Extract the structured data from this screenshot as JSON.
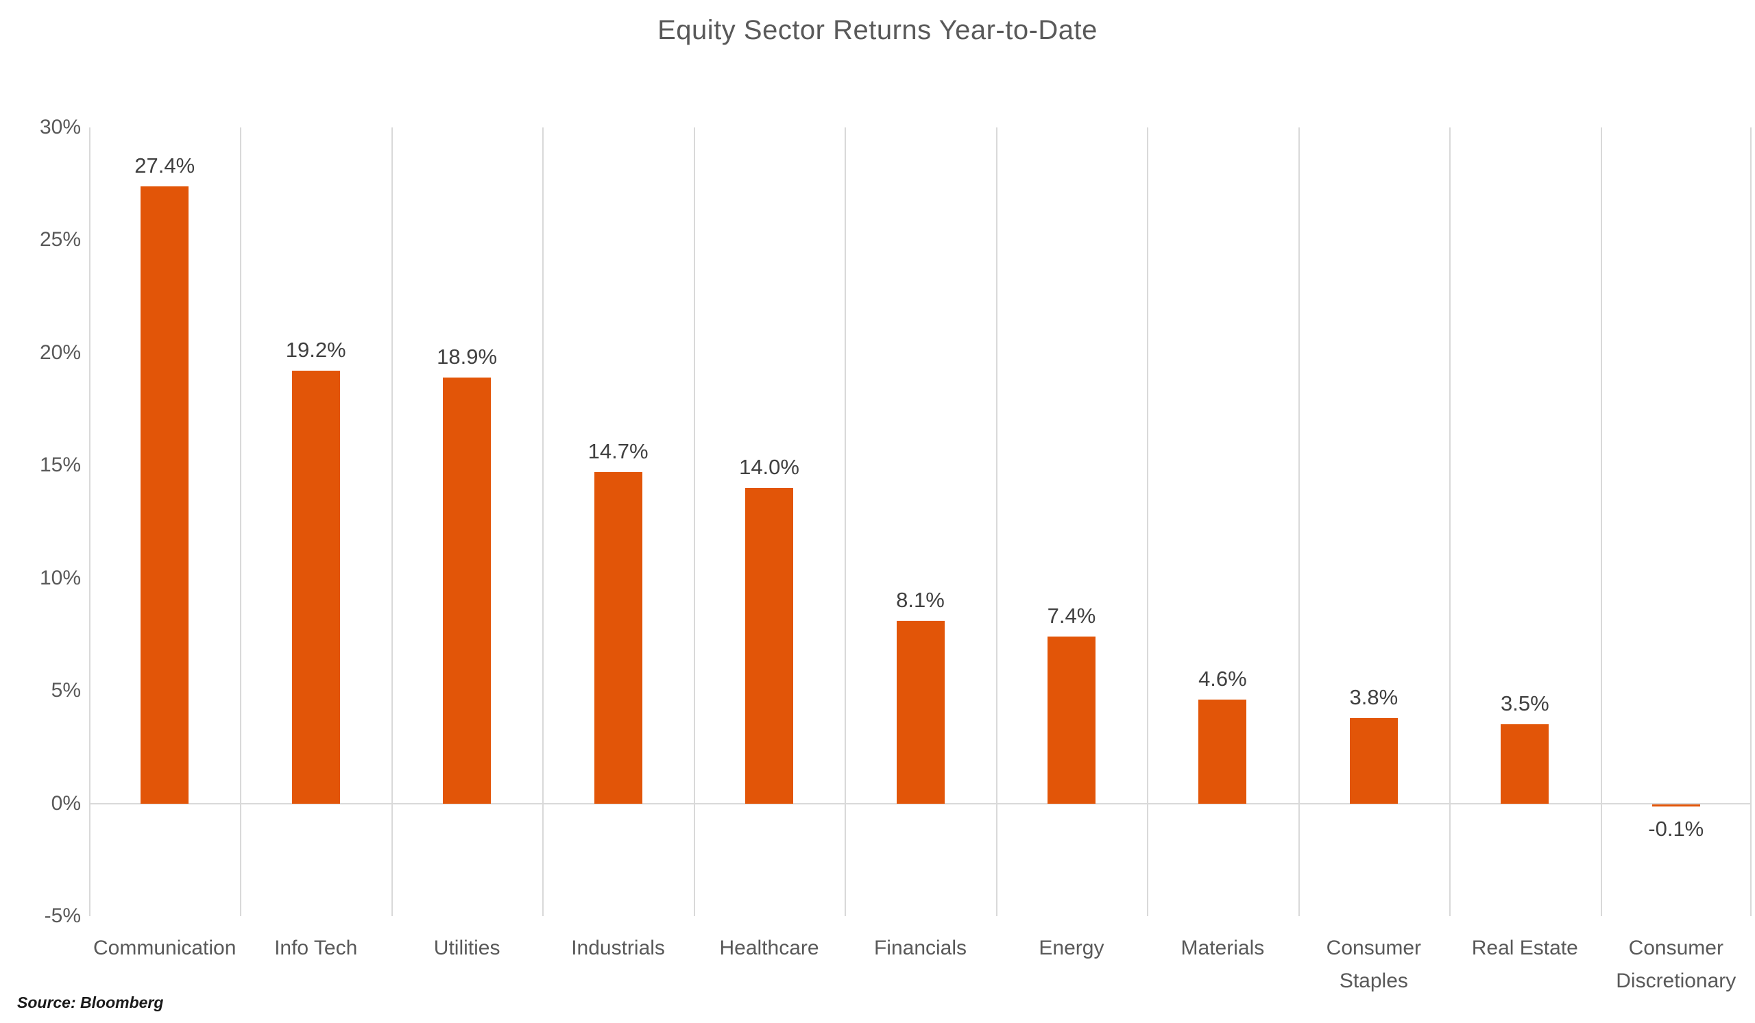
{
  "title": "Equity Sector Returns Year-to-Date",
  "source_note": "Source: Bloomberg",
  "colors": {
    "bar": "#E25508",
    "gridline": "#D9D9D9",
    "axis_text": "#595959",
    "data_label": "#404040",
    "title_text": "#595959",
    "source_text": "#1A1A1A"
  },
  "chart_data": {
    "type": "bar",
    "title": "Equity Sector Returns Year-to-Date",
    "categories": [
      "Communication",
      "Info Tech",
      "Utilities",
      "Industrials",
      "Healthcare",
      "Financials",
      "Energy",
      "Materials",
      "Consumer Staples",
      "Real Estate",
      "Consumer Discretionary"
    ],
    "values": [
      27.4,
      19.2,
      18.9,
      14.7,
      14.0,
      8.1,
      7.4,
      4.6,
      3.8,
      3.5,
      -0.1
    ],
    "data_labels": [
      "27.4%",
      "19.2%",
      "18.9%",
      "14.7%",
      "14.0%",
      "8.1%",
      "7.4%",
      "4.6%",
      "3.8%",
      "3.5%",
      "-0.1%"
    ],
    "xlabel": "",
    "ylabel": "",
    "ylim": [
      -5,
      30
    ],
    "yticks": [
      30,
      25,
      20,
      15,
      10,
      5,
      0,
      -5
    ],
    "ytick_labels": [
      "30%",
      "25%",
      "20%",
      "15%",
      "10%",
      "5%",
      "0%",
      "-5%"
    ],
    "legend": "none",
    "grid": "vertical-category-separators-and-zero-line",
    "bar_color": "#E25508",
    "annotation": "Source: Bloomberg"
  }
}
